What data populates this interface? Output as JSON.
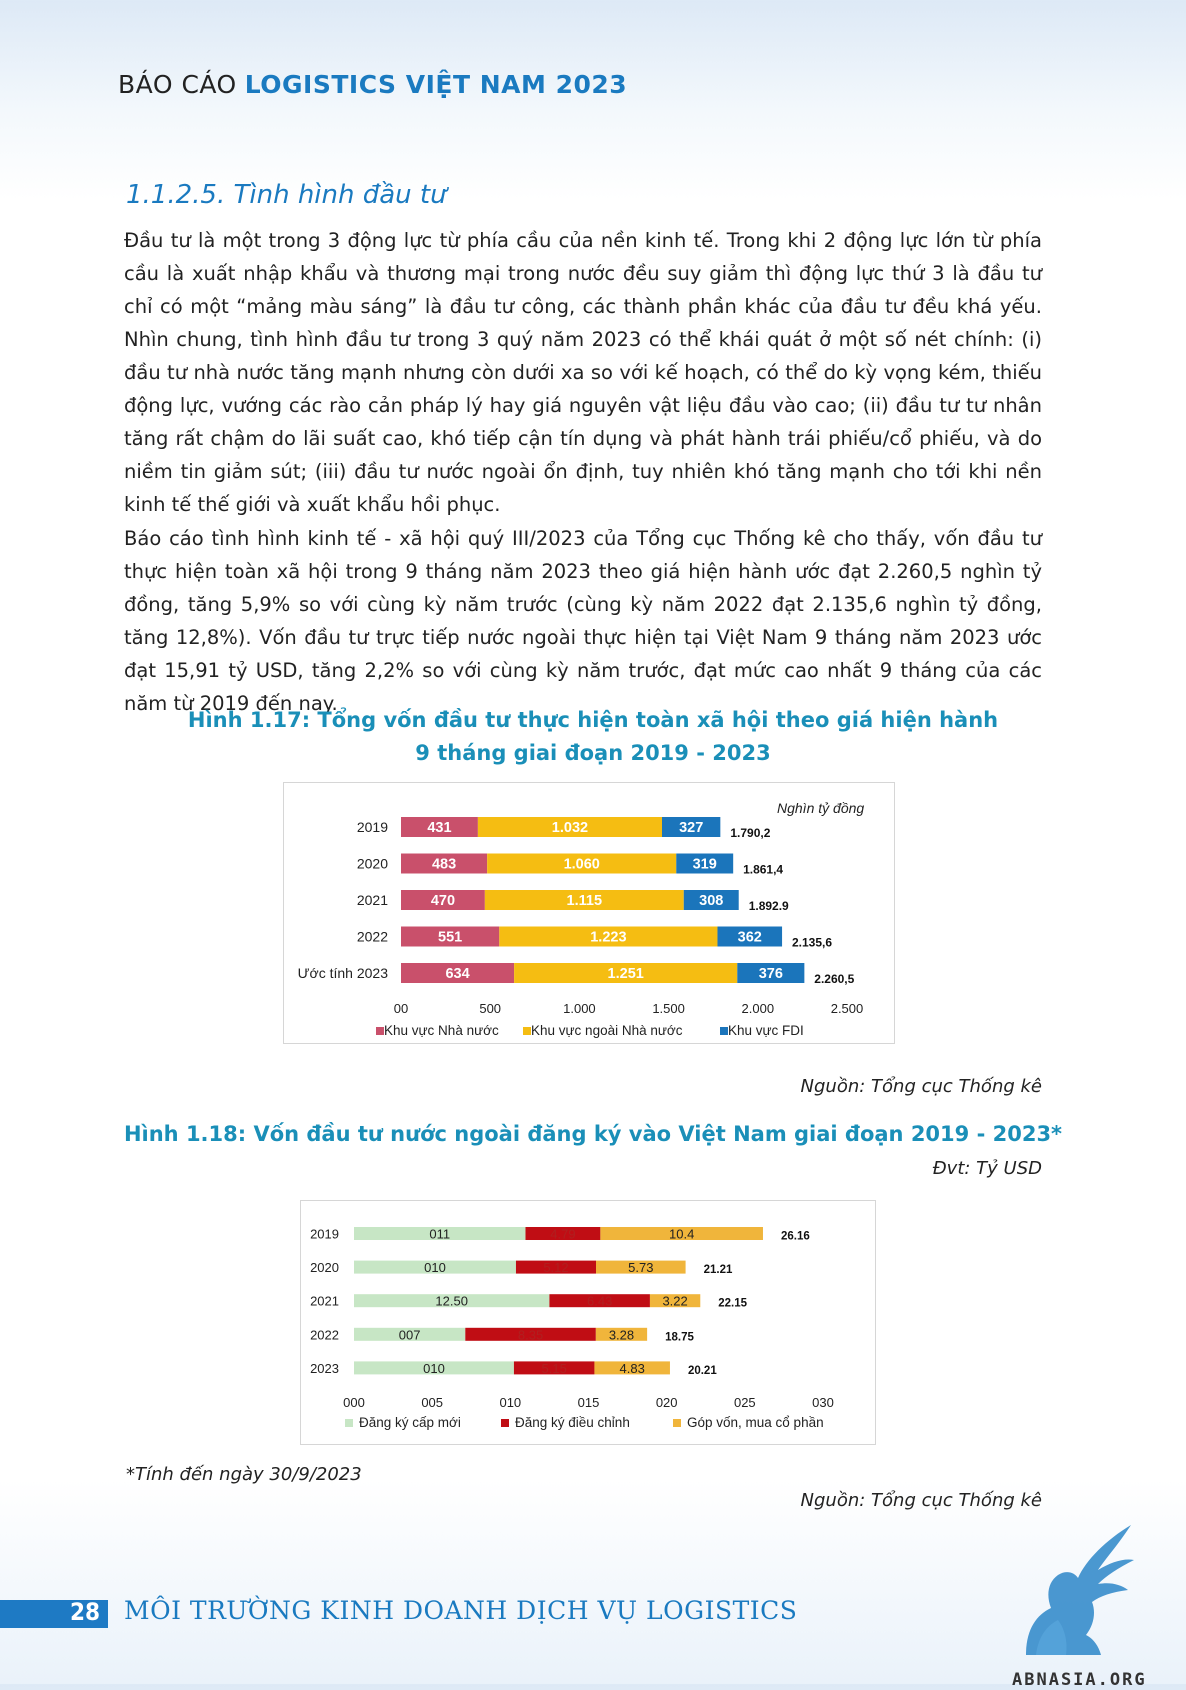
{
  "header": {
    "prefix": "BÁO CÁO",
    "title": "LOGISTICS VIỆT NAM 2023"
  },
  "section_title": "1.1.2.5. Tình hình đầu tư",
  "paragraphs": [
    "Đầu tư là một trong 3 động lực từ phía cầu của nền kinh tế. Trong khi 2 động lực lớn từ phía cầu là xuất nhập khẩu và thương mại trong nước đều suy giảm thì động lực thứ 3 là đầu tư chỉ có một “mảng màu sáng” là đầu tư công, các thành phần khác của đầu tư đều khá yếu. Nhìn chung, tình hình đầu tư trong 3 quý năm 2023 có thể khái quát ở một số nét chính: (i) đầu tư nhà nước tăng mạnh nhưng còn dưới xa so với kế hoạch, có thể do kỳ vọng kém, thiếu động lực, vướng các rào cản pháp lý hay giá nguyên vật liệu đầu vào cao; (ii) đầu tư tư nhân tăng rất chậm do lãi suất cao, khó tiếp cận tín dụng và phát hành trái phiếu/cổ phiếu, và do niềm tin giảm sút; (iii) đầu tư nước ngoài ổn định, tuy nhiên khó tăng mạnh cho tới khi nền kinh tế thế giới và xuất khẩu hồi phục.",
    "Báo cáo tình hình kinh tế - xã hội quý III/2023 của Tổng cục Thống kê cho thấy, vốn đầu tư thực hiện toàn xã hội trong 9 tháng năm 2023 theo giá hiện hành ước đạt 2.260,5 nghìn tỷ đồng, tăng 5,9% so với cùng kỳ năm trước (cùng kỳ năm 2022 đạt 2.135,6 nghìn tỷ đồng, tăng 12,8%). Vốn đầu tư trực tiếp nước ngoài thực hiện tại Việt Nam 9 tháng năm 2023 ước đạt 15,91 tỷ USD, tăng 2,2% so với cùng kỳ năm trước, đạt mức cao nhất 9 tháng của các năm từ 2019 đến nay."
  ],
  "figure1": {
    "title_line1": "Hình 1.17: Tổng vốn đầu tư thực hiện toàn xã hội theo giá hiện hành",
    "title_line2": "9 tháng giai đoạn 2019 - 2023",
    "source": "Nguồn: Tổng cục Thống kê"
  },
  "figure2": {
    "title": "Hình 1.18: Vốn đầu tư nước ngoài đăng ký vào Việt Nam giai đoạn 2019 - 2023*",
    "unit": "Đvt: Tỷ USD",
    "footnote": "*Tính đến ngày 30/9/2023",
    "source": "Nguồn: Tổng cục Thống kê"
  },
  "chart_data": [
    {
      "type": "bar",
      "orientation": "horizontal",
      "stacked": true,
      "unit_label": "Nghìn tỷ đồng",
      "categories": [
        "2019",
        "2020",
        "2021",
        "2022",
        "Ước tính 2023"
      ],
      "category_labels": [
        "2019",
        "2020",
        "2021",
        "2022",
        "Ước tính 2023"
      ],
      "series": [
        {
          "name": "Khu vực Nhà nước",
          "color": "#c9506b",
          "values": [
            431,
            483,
            470,
            551,
            634
          ],
          "labels": [
            "431",
            "483",
            "470",
            "551",
            "634"
          ]
        },
        {
          "name": "Khu vực ngoài Nhà nước",
          "color": "#f5bd12",
          "values": [
            1032,
            1060,
            1115,
            1223,
            1251
          ],
          "labels": [
            "1.032",
            "1.060",
            "1.115",
            "1.223",
            "1.251"
          ]
        },
        {
          "name": "Khu vực FDI",
          "color": "#1b75bb",
          "values": [
            327,
            319,
            308,
            362,
            376
          ],
          "labels": [
            "327",
            "319",
            "308",
            "362",
            "376"
          ]
        }
      ],
      "totals": [
        1790.2,
        1861.4,
        1892.9,
        2135.6,
        2260.5
      ],
      "total_labels": [
        "1.790,2",
        "1.861,4",
        "1.892.9",
        "2.135,6",
        "2.260,5"
      ],
      "xlim": [
        0,
        2500
      ],
      "x_ticks": [
        0,
        500,
        1000,
        1500,
        2000,
        2500
      ],
      "x_tick_labels": [
        "00",
        "500",
        "1.000",
        "1.500",
        "2.000",
        "2.500"
      ],
      "legend_position": "bottom"
    },
    {
      "type": "bar",
      "orientation": "horizontal",
      "stacked": true,
      "categories": [
        "2019",
        "2020",
        "2021",
        "2022",
        "2023"
      ],
      "category_labels": [
        "2019",
        "2020",
        "2021",
        "2022",
        "2023"
      ],
      "series": [
        {
          "name": "Đăng ký cấp mới",
          "color": "#c7e6c5",
          "values": [
            10.97,
            10.36,
            12.5,
            7.12,
            10.23
          ],
          "labels": [
            "011",
            "010",
            "12.50",
            "007",
            "010"
          ]
        },
        {
          "name": "Đăng ký điều chỉnh",
          "color": "#c00d14",
          "values": [
            4.79,
            5.12,
            6.43,
            8.35,
            5.15
          ],
          "labels": [
            "4.79",
            "5.12",
            "6.43",
            "8.35",
            "5.15"
          ]
        },
        {
          "name": "Góp vốn, mua cổ phần",
          "color": "#f0b53b",
          "values": [
            10.4,
            5.73,
            3.22,
            3.28,
            4.83
          ],
          "labels": [
            "10.4",
            "5.73",
            "3.22",
            "3.28",
            "4.83"
          ]
        }
      ],
      "totals": [
        26.16,
        21.21,
        22.15,
        18.75,
        20.21
      ],
      "total_labels": [
        "26.16",
        "21.21",
        "22.15",
        "18.75",
        "20.21"
      ],
      "xlim": [
        0,
        30
      ],
      "x_ticks": [
        0,
        5,
        10,
        15,
        20,
        25,
        30
      ],
      "x_tick_labels": [
        "000",
        "005",
        "010",
        "015",
        "020",
        "025",
        "030"
      ],
      "legend_position": "bottom"
    }
  ],
  "footer": {
    "page_number": "28",
    "title": "MÔI TRƯỜNG KINH DOANH DỊCH VỤ LOGISTICS",
    "logo_text": "ABNASIA.ORG"
  }
}
